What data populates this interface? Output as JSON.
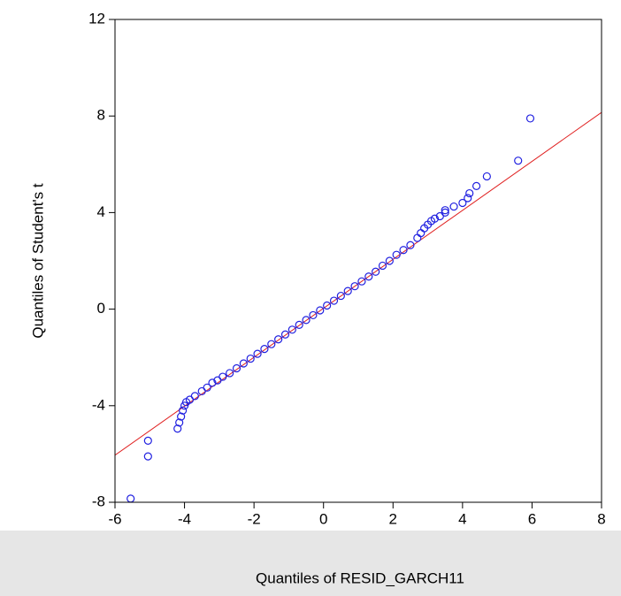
{
  "chart_data": {
    "type": "scatter",
    "xlabel": "Quantiles of RESID_GARCH11",
    "ylabel": "Quantiles of Student's t",
    "x": [
      -5.55,
      -5.05,
      -5.05,
      -4.2,
      -4.15,
      -4.1,
      -4.05,
      -4.0,
      -3.95,
      -3.85,
      -3.7,
      -3.5,
      -3.35,
      -3.2,
      -3.05,
      -2.9,
      -2.7,
      -2.5,
      -2.3,
      -2.1,
      -1.9,
      -1.7,
      -1.5,
      -1.3,
      -1.1,
      -0.9,
      -0.7,
      -0.5,
      -0.3,
      -0.1,
      0.1,
      0.3,
      0.5,
      0.7,
      0.9,
      1.1,
      1.3,
      1.5,
      1.7,
      1.9,
      2.1,
      2.3,
      2.5,
      2.7,
      2.8,
      2.9,
      3.0,
      3.1,
      3.2,
      3.35,
      3.5,
      3.5,
      3.75,
      4.0,
      4.15,
      4.2,
      4.4,
      4.7,
      5.6,
      5.95
    ],
    "series": [
      {
        "color": "#2020e0",
        "values": [
          -7.85,
          -6.1,
          -5.45,
          -4.95,
          -4.7,
          -4.45,
          -4.2,
          -4.0,
          -3.85,
          -3.75,
          -3.6,
          -3.4,
          -3.25,
          -3.05,
          -2.95,
          -2.8,
          -2.65,
          -2.45,
          -2.25,
          -2.05,
          -1.85,
          -1.65,
          -1.45,
          -1.25,
          -1.05,
          -0.85,
          -0.65,
          -0.45,
          -0.25,
          -0.05,
          0.15,
          0.35,
          0.55,
          0.75,
          0.95,
          1.15,
          1.35,
          1.55,
          1.8,
          2.0,
          2.25,
          2.45,
          2.65,
          2.95,
          3.15,
          3.35,
          3.5,
          3.65,
          3.75,
          3.85,
          4.0,
          4.1,
          4.25,
          4.4,
          4.6,
          4.8,
          5.1,
          5.5,
          6.15,
          7.9
        ]
      }
    ],
    "reference_line": {
      "color": "#e02020",
      "x": [
        -6,
        8
      ],
      "y": [
        -6.05,
        8.15
      ]
    },
    "xlim": [
      -6,
      8
    ],
    "ylim": [
      -8,
      12
    ],
    "xticks": [
      -6,
      -4,
      -2,
      0,
      2,
      4,
      6,
      8
    ],
    "yticks": [
      -8,
      -4,
      0,
      4,
      8,
      12
    ]
  }
}
